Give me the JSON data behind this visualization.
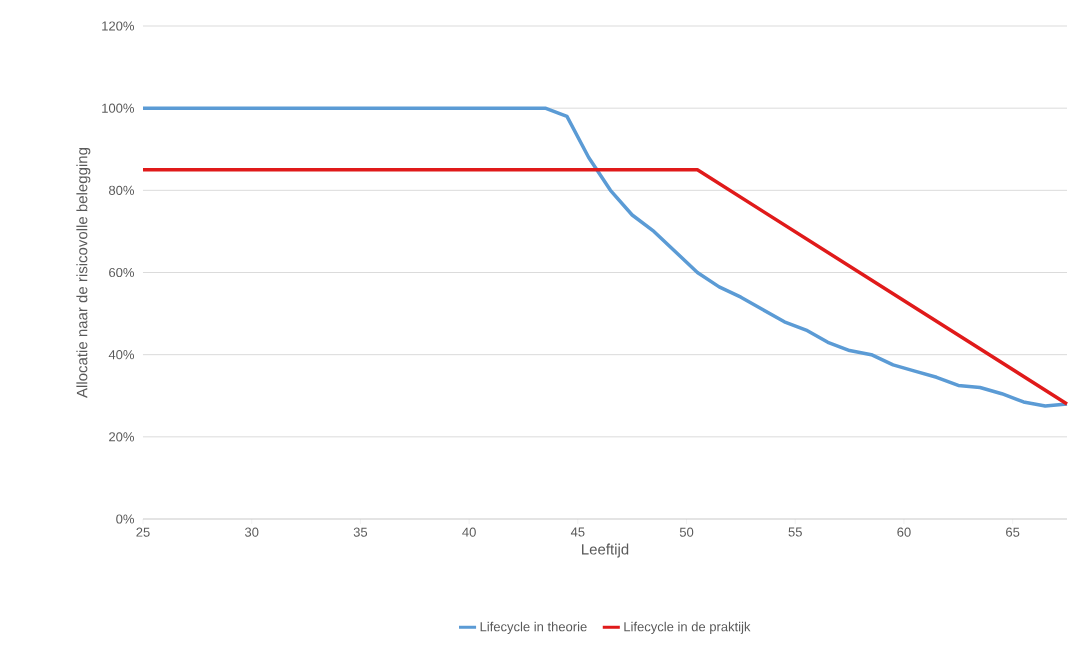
{
  "chart_data": {
    "type": "line",
    "xlabel": "Leeftijd",
    "ylabel": "Allocatie naar de risicovolle belegging",
    "xlim": [
      25,
      67.5
    ],
    "xticks": [
      25,
      30,
      35,
      40,
      45,
      50,
      55,
      60,
      65
    ],
    "ylim": [
      0,
      120
    ],
    "yticks": [
      {
        "value": 0,
        "label": "0%"
      },
      {
        "value": 20,
        "label": "20%"
      },
      {
        "value": 40,
        "label": "40%"
      },
      {
        "value": 60,
        "label": "60%"
      },
      {
        "value": 80,
        "label": "80%"
      },
      {
        "value": 100,
        "label": "100%"
      },
      {
        "value": 120,
        "label": "120%"
      }
    ],
    "grid": "y",
    "legend": "bottom",
    "marker": "none",
    "line_style": "solid",
    "series": [
      {
        "name": "Lifecycle in theorie",
        "color": "#5b9bd5",
        "x": [
          25,
          43.5,
          44.5,
          45.5,
          46.5,
          47.5,
          48.5,
          49.5,
          50.5,
          51.5,
          52.5,
          53.5,
          54.5,
          55.5,
          56.5,
          57.5,
          58.5,
          59.5,
          60.5,
          61.5,
          62.5,
          63.5,
          64.5,
          65.5,
          66.5,
          67.5
        ],
        "values": [
          100,
          100,
          98,
          88,
          80,
          74,
          70,
          65,
          60,
          56.5,
          54,
          51,
          48,
          46,
          43,
          41,
          40,
          37.5,
          36,
          34.5,
          32.5,
          32,
          30.5,
          28.5,
          27.5,
          28
        ]
      },
      {
        "name": "Lifecycle in de praktijk",
        "color": "#e01a1a",
        "x": [
          25,
          50.5,
          67.5
        ],
        "values": [
          85,
          85,
          28
        ]
      }
    ]
  }
}
